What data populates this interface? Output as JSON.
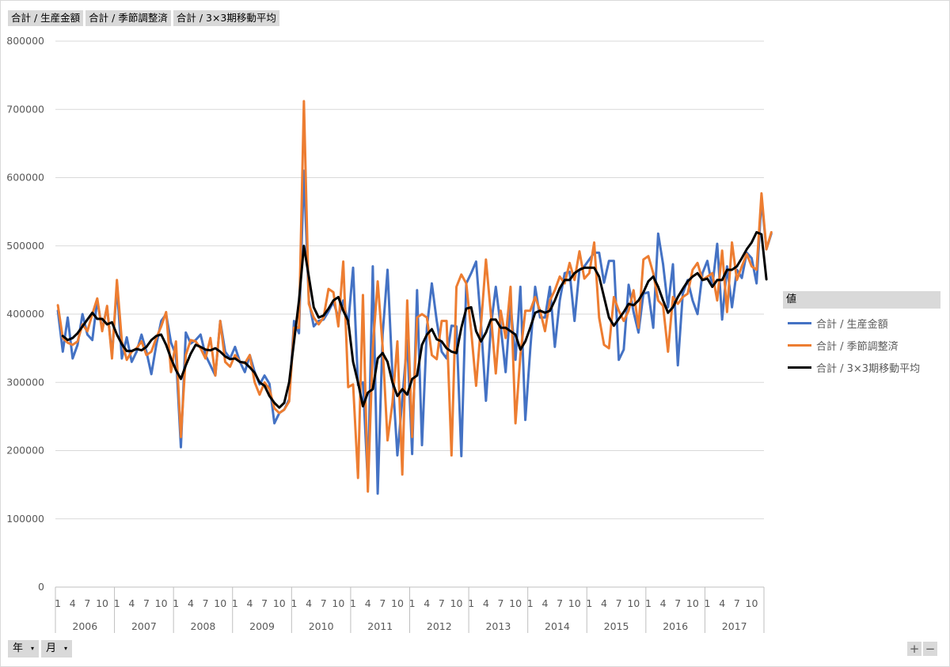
{
  "field_buttons": [
    "合計 / 生産金額",
    "合計 / 季節調整済",
    "合計 / 3×3期移動平均"
  ],
  "legend_title": "値",
  "axis_buttons": {
    "year": "年",
    "month": "月",
    "dropdown_icon": "triangle-down-icon"
  },
  "zoom": {
    "expand": "+",
    "collapse": "−"
  },
  "chart_data": {
    "type": "line",
    "ylim": [
      0,
      800000
    ],
    "yticks": [
      "0",
      "100000",
      "200000",
      "300000",
      "400000",
      "500000",
      "600000",
      "700000",
      "800000"
    ],
    "years": [
      "2006",
      "2007",
      "2008",
      "2009",
      "2010",
      "2011",
      "2012",
      "2013",
      "2014",
      "2015",
      "2016",
      "2017"
    ],
    "month_tick_labels": [
      "1",
      "4",
      "7",
      "10"
    ],
    "series": [
      {
        "name": "合計 / 生産金額",
        "color": "#4472c4",
        "values": [
          405000,
          345000,
          395000,
          335000,
          355000,
          400000,
          370000,
          362000,
          420000,
          378000,
          410000,
          340000,
          440000,
          335000,
          366000,
          330000,
          345000,
          370000,
          345000,
          312000,
          355000,
          390000,
          400000,
          358000,
          340000,
          205000,
          373000,
          357000,
          362000,
          370000,
          340000,
          325000,
          310000,
          390000,
          345000,
          335000,
          352000,
          330000,
          315000,
          340000,
          315000,
          297000,
          310000,
          298000,
          240000,
          255000,
          260000,
          275000,
          390000,
          372000,
          610000,
          420000,
          382000,
          390000,
          392000,
          404000,
          418000,
          395000,
          420000,
          385000,
          468000,
          296000,
          300000,
          152000,
          470000,
          137000,
          370000,
          465000,
          310000,
          193000,
          275000,
          362000,
          195000,
          435000,
          208000,
          380000,
          445000,
          390000,
          345000,
          335000,
          383000,
          382000,
          192000,
          445000,
          460000,
          477000,
          385000,
          273000,
          382000,
          440000,
          382000,
          315000,
          415000,
          333000,
          440000,
          245000,
          348000,
          440000,
          395000,
          395000,
          440000,
          352000,
          420000,
          460000,
          462000,
          390000,
          465000,
          470000,
          480000,
          490000,
          490000,
          446000,
          478000,
          478000,
          333000,
          348000,
          443000,
          403000,
          373000,
          430000,
          432000,
          380000,
          518000,
          473000,
          410000,
          473000,
          325000,
          430000,
          450000,
          420000,
          400000,
          460000,
          478000,
          440000,
          503000,
          392000,
          470000,
          410000,
          465000,
          453000,
          490000,
          482000,
          445000,
          568000,
          495000,
          518000
        ]
      },
      {
        "name": "合計 / 季節調整済",
        "color": "#ed7d31",
        "values": [
          413000,
          365000,
          358000,
          355000,
          360000,
          385000,
          375000,
          400000,
          423000,
          375000,
          412000,
          335000,
          450000,
          360000,
          333000,
          345000,
          350000,
          360000,
          340000,
          345000,
          365000,
          382000,
          403000,
          315000,
          360000,
          220000,
          340000,
          362000,
          360000,
          350000,
          335000,
          365000,
          310000,
          390000,
          330000,
          323000,
          340000,
          330000,
          328000,
          340000,
          300000,
          282000,
          300000,
          290000,
          262000,
          255000,
          260000,
          272000,
          380000,
          380000,
          712000,
          415000,
          395000,
          385000,
          395000,
          437000,
          432000,
          382000,
          477000,
          293000,
          297000,
          160000,
          428000,
          140000,
          350000,
          448000,
          352000,
          215000,
          270000,
          360000,
          165000,
          420000,
          220000,
          395000,
          400000,
          395000,
          340000,
          334000,
          390000,
          390000,
          193000,
          440000,
          458000,
          445000,
          375000,
          295000,
          385000,
          480000,
          400000,
          313000,
          405000,
          365000,
          440000,
          240000,
          340000,
          405000,
          405000,
          425000,
          405000,
          375000,
          420000,
          435000,
          455000,
          445000,
          475000,
          450000,
          492000,
          452000,
          460000,
          505000,
          395000,
          355000,
          350000,
          425000,
          405000,
          390000,
          405000,
          435000,
          380000,
          480000,
          485000,
          460000,
          420000,
          412000,
          345000,
          425000,
          415000,
          425000,
          430000,
          465000,
          475000,
          450000,
          455000,
          460000,
          420000,
          493000,
          403000,
          505000,
          450000,
          470000,
          488000,
          470000,
          465000,
          577000,
          495000,
          520000
        ]
      },
      {
        "name": "合計 / 3×3期移動平均",
        "color": "#000000",
        "values": [
          null,
          368000,
          362000,
          365000,
          372000,
          382000,
          392000,
          402000,
          393000,
          393000,
          385000,
          388000,
          370000,
          356000,
          346000,
          346000,
          349000,
          347000,
          352000,
          362000,
          368000,
          370000,
          355000,
          335000,
          318000,
          305000,
          325000,
          342000,
          355000,
          352000,
          348000,
          347000,
          350000,
          345000,
          338000,
          334000,
          335000,
          330000,
          329000,
          322000,
          314000,
          300000,
          295000,
          280000,
          270000,
          263000,
          270000,
          300000,
          360000,
          420000,
          500000,
          455000,
          410000,
          395000,
          398000,
          408000,
          420000,
          425000,
          405000,
          390000,
          330000,
          300000,
          265000,
          285000,
          290000,
          335000,
          343000,
          330000,
          300000,
          280000,
          290000,
          282000,
          305000,
          310000,
          355000,
          370000,
          378000,
          363000,
          360000,
          350000,
          345000,
          343000,
          380000,
          408000,
          410000,
          375000,
          360000,
          373000,
          392000,
          392000,
          380000,
          380000,
          375000,
          370000,
          348000,
          360000,
          380000,
          402000,
          405000,
          402000,
          405000,
          420000,
          438000,
          450000,
          450000,
          460000,
          465000,
          468000,
          468000,
          468000,
          455000,
          425000,
          395000,
          383000,
          393000,
          403000,
          415000,
          413000,
          420000,
          432000,
          448000,
          455000,
          440000,
          420000,
          402000,
          410000,
          425000,
          437000,
          448000,
          455000,
          460000,
          450000,
          452000,
          440000,
          450000,
          450000,
          465000,
          465000,
          470000,
          482000,
          495000,
          505000,
          520000,
          517000,
          451000
        ]
      }
    ]
  }
}
